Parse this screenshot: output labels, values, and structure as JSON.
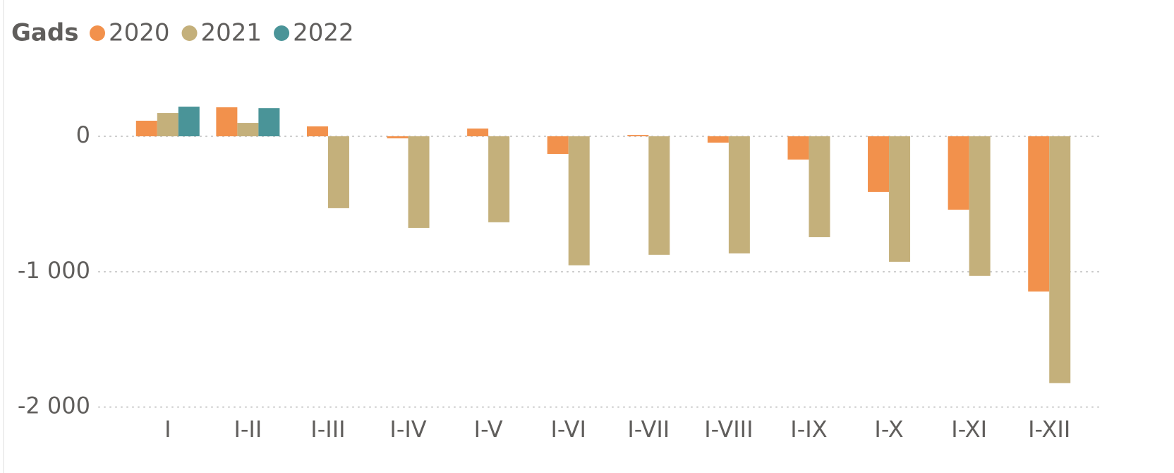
{
  "chart_data": {
    "type": "bar",
    "legend_title": "Gads",
    "categories": [
      "I",
      "I-II",
      "I-III",
      "I-IV",
      "I-V",
      "I-VI",
      "I-VII",
      "I-VIII",
      "I-IX",
      "I-X",
      "I-XI",
      "I-XII"
    ],
    "series": [
      {
        "name": "2020",
        "color": "#f2914c",
        "values": [
          115,
          214,
          73,
          -15,
          57,
          -130,
          10,
          -47,
          -172,
          -411,
          -542,
          -1146
        ]
      },
      {
        "name": "2021",
        "color": "#c4b07b",
        "values": [
          172,
          99,
          -531,
          -677,
          -635,
          -953,
          -875,
          -865,
          -745,
          -927,
          -1031,
          -1823
        ]
      },
      {
        "name": "2022",
        "color": "#4a9498",
        "values": [
          219,
          208,
          null,
          null,
          null,
          null,
          null,
          null,
          null,
          null,
          null,
          null
        ]
      }
    ],
    "ylim": [
      -2080,
      480
    ],
    "yticks": [
      0,
      {
        "value": -1000,
        "label": "-1 000"
      },
      {
        "value": -2000,
        "label": "-2 000"
      }
    ],
    "grid": true
  }
}
